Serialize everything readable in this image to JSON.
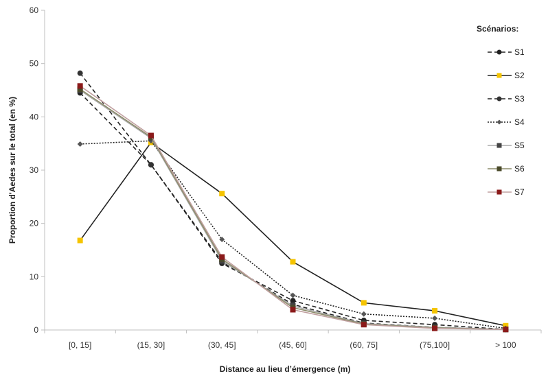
{
  "chart_data": {
    "type": "line",
    "xlabel": "Distance au lieu d’émergence (m)",
    "ylabel": "Proportion d'Aedes sur le total (en %)",
    "categories": [
      "[0, 15]",
      "(15, 30]",
      "(30, 45]",
      "(45, 60]",
      "(60, 75]",
      "(75,100]",
      "> 100"
    ],
    "ylim": [
      0,
      60
    ],
    "yticks": [
      0,
      10,
      20,
      30,
      40,
      50,
      60
    ],
    "grid": false,
    "legend_title": "Scénarios:",
    "legend_position": "right",
    "series": [
      {
        "name": "S1",
        "values": [
          44.5,
          31.0,
          12.5,
          5.5,
          1.8,
          1.0,
          0.1
        ],
        "color": "#222222",
        "dash": "6,4",
        "marker": "circle",
        "marker_color": "#222222"
      },
      {
        "name": "S2",
        "values": [
          16.8,
          35.2,
          25.6,
          12.8,
          5.1,
          3.6,
          0.8
        ],
        "color": "#222222",
        "dash": "",
        "marker": "square",
        "marker_color": "#f5c400"
      },
      {
        "name": "S3",
        "values": [
          48.2,
          31.0,
          12.8,
          4.8,
          1.3,
          0.5,
          0.1
        ],
        "color": "#222222",
        "dash": "6,4",
        "marker": "circle",
        "marker_color": "#333333"
      },
      {
        "name": "S4",
        "values": [
          34.9,
          35.5,
          17.0,
          6.5,
          3.0,
          2.2,
          0.3
        ],
        "color": "#222222",
        "dash": "2,2",
        "marker": "diamond",
        "marker_color": "#555555"
      },
      {
        "name": "S5",
        "values": [
          45.0,
          36.0,
          13.0,
          4.5,
          1.2,
          0.5,
          0.1
        ],
        "color": "#aaaaaa",
        "dash": "",
        "marker": "square",
        "marker_color": "#444444"
      },
      {
        "name": "S6",
        "values": [
          45.2,
          36.2,
          13.3,
          4.2,
          1.1,
          0.4,
          0.1
        ],
        "color": "#8c8c6a",
        "dash": "",
        "marker": "square",
        "marker_color": "#4a4a2a"
      },
      {
        "name": "S7",
        "values": [
          45.8,
          36.5,
          13.7,
          3.8,
          1.0,
          0.3,
          0.1
        ],
        "color": "#c0a0a0",
        "dash": "",
        "marker": "square",
        "marker_color": "#8b1a1a"
      }
    ]
  }
}
